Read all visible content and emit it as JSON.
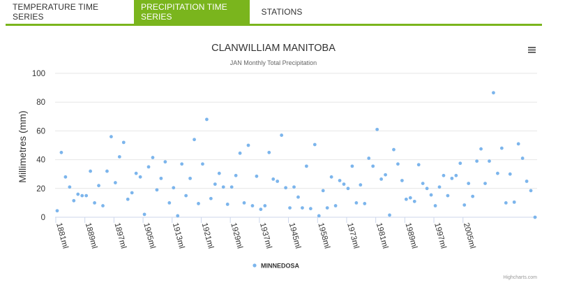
{
  "tabs": [
    {
      "label": "TEMPERATURE TIME SERIES",
      "active": false
    },
    {
      "label": "PRECIPITATION TIME SERIES",
      "active": true
    },
    {
      "label": "STATIONS",
      "active": false
    }
  ],
  "colors": {
    "accent": "#7ab51d",
    "series": "#7cb5ec",
    "grid": "#e6e6e6",
    "text": "#333333",
    "subtle": "#666666"
  },
  "credits": "Highcharts.com",
  "menu_icon": "hamburger-menu-icon",
  "chart_data": {
    "type": "scatter",
    "title": "CLANWILLIAM MANITOBA",
    "subtitle": "JAN Monthly Total Precipitation",
    "ylabel": "Millimetres (mm)",
    "xlabel": "",
    "ylim": [
      0,
      100
    ],
    "yticks": [
      0,
      20,
      40,
      60,
      80,
      100
    ],
    "grid": true,
    "legend_position": "bottom-center",
    "xticks": [
      "1881ml",
      "1889ml",
      "1897ml",
      "1905ml",
      "1913ml",
      "1921ml",
      "1929ml",
      "1937ml",
      "1945ml",
      "1958ml",
      "1973ml",
      "1981ml",
      "1989ml",
      "1997ml",
      "2005ml"
    ],
    "series": [
      {
        "name": "MINNEDOSA",
        "values": [
          4.5,
          45,
          28,
          21,
          11.5,
          16,
          15,
          15,
          32,
          10,
          22,
          8,
          32,
          56,
          24,
          42,
          52,
          12.5,
          17,
          30.5,
          28,
          2,
          35,
          41.5,
          19,
          27,
          38.5,
          10,
          20.5,
          1,
          37,
          15,
          27,
          54,
          9.5,
          37,
          68,
          13,
          23,
          30.5,
          21,
          9,
          21,
          29,
          44.5,
          10,
          50,
          8,
          28.5,
          5.5,
          8,
          45,
          26.5,
          25,
          57,
          20.5,
          6.5,
          21,
          14,
          6.5,
          35.5,
          6,
          50.5,
          1,
          18.5,
          6.5,
          28,
          8,
          25.5,
          23,
          20,
          35.5,
          10,
          22.5,
          9.5,
          41,
          35.5,
          61,
          26.5,
          29.5,
          1.5,
          47,
          37,
          25.5,
          12.5,
          13.5,
          11,
          36.5,
          23.5,
          20,
          15.5,
          8,
          21,
          29,
          15,
          27,
          29,
          37.5,
          8.5,
          23.5,
          14.5,
          39,
          47.5,
          23.5,
          39,
          86.5,
          30.5,
          48,
          10,
          30,
          10.5,
          51,
          41,
          25,
          18.5,
          0
        ]
      }
    ]
  }
}
